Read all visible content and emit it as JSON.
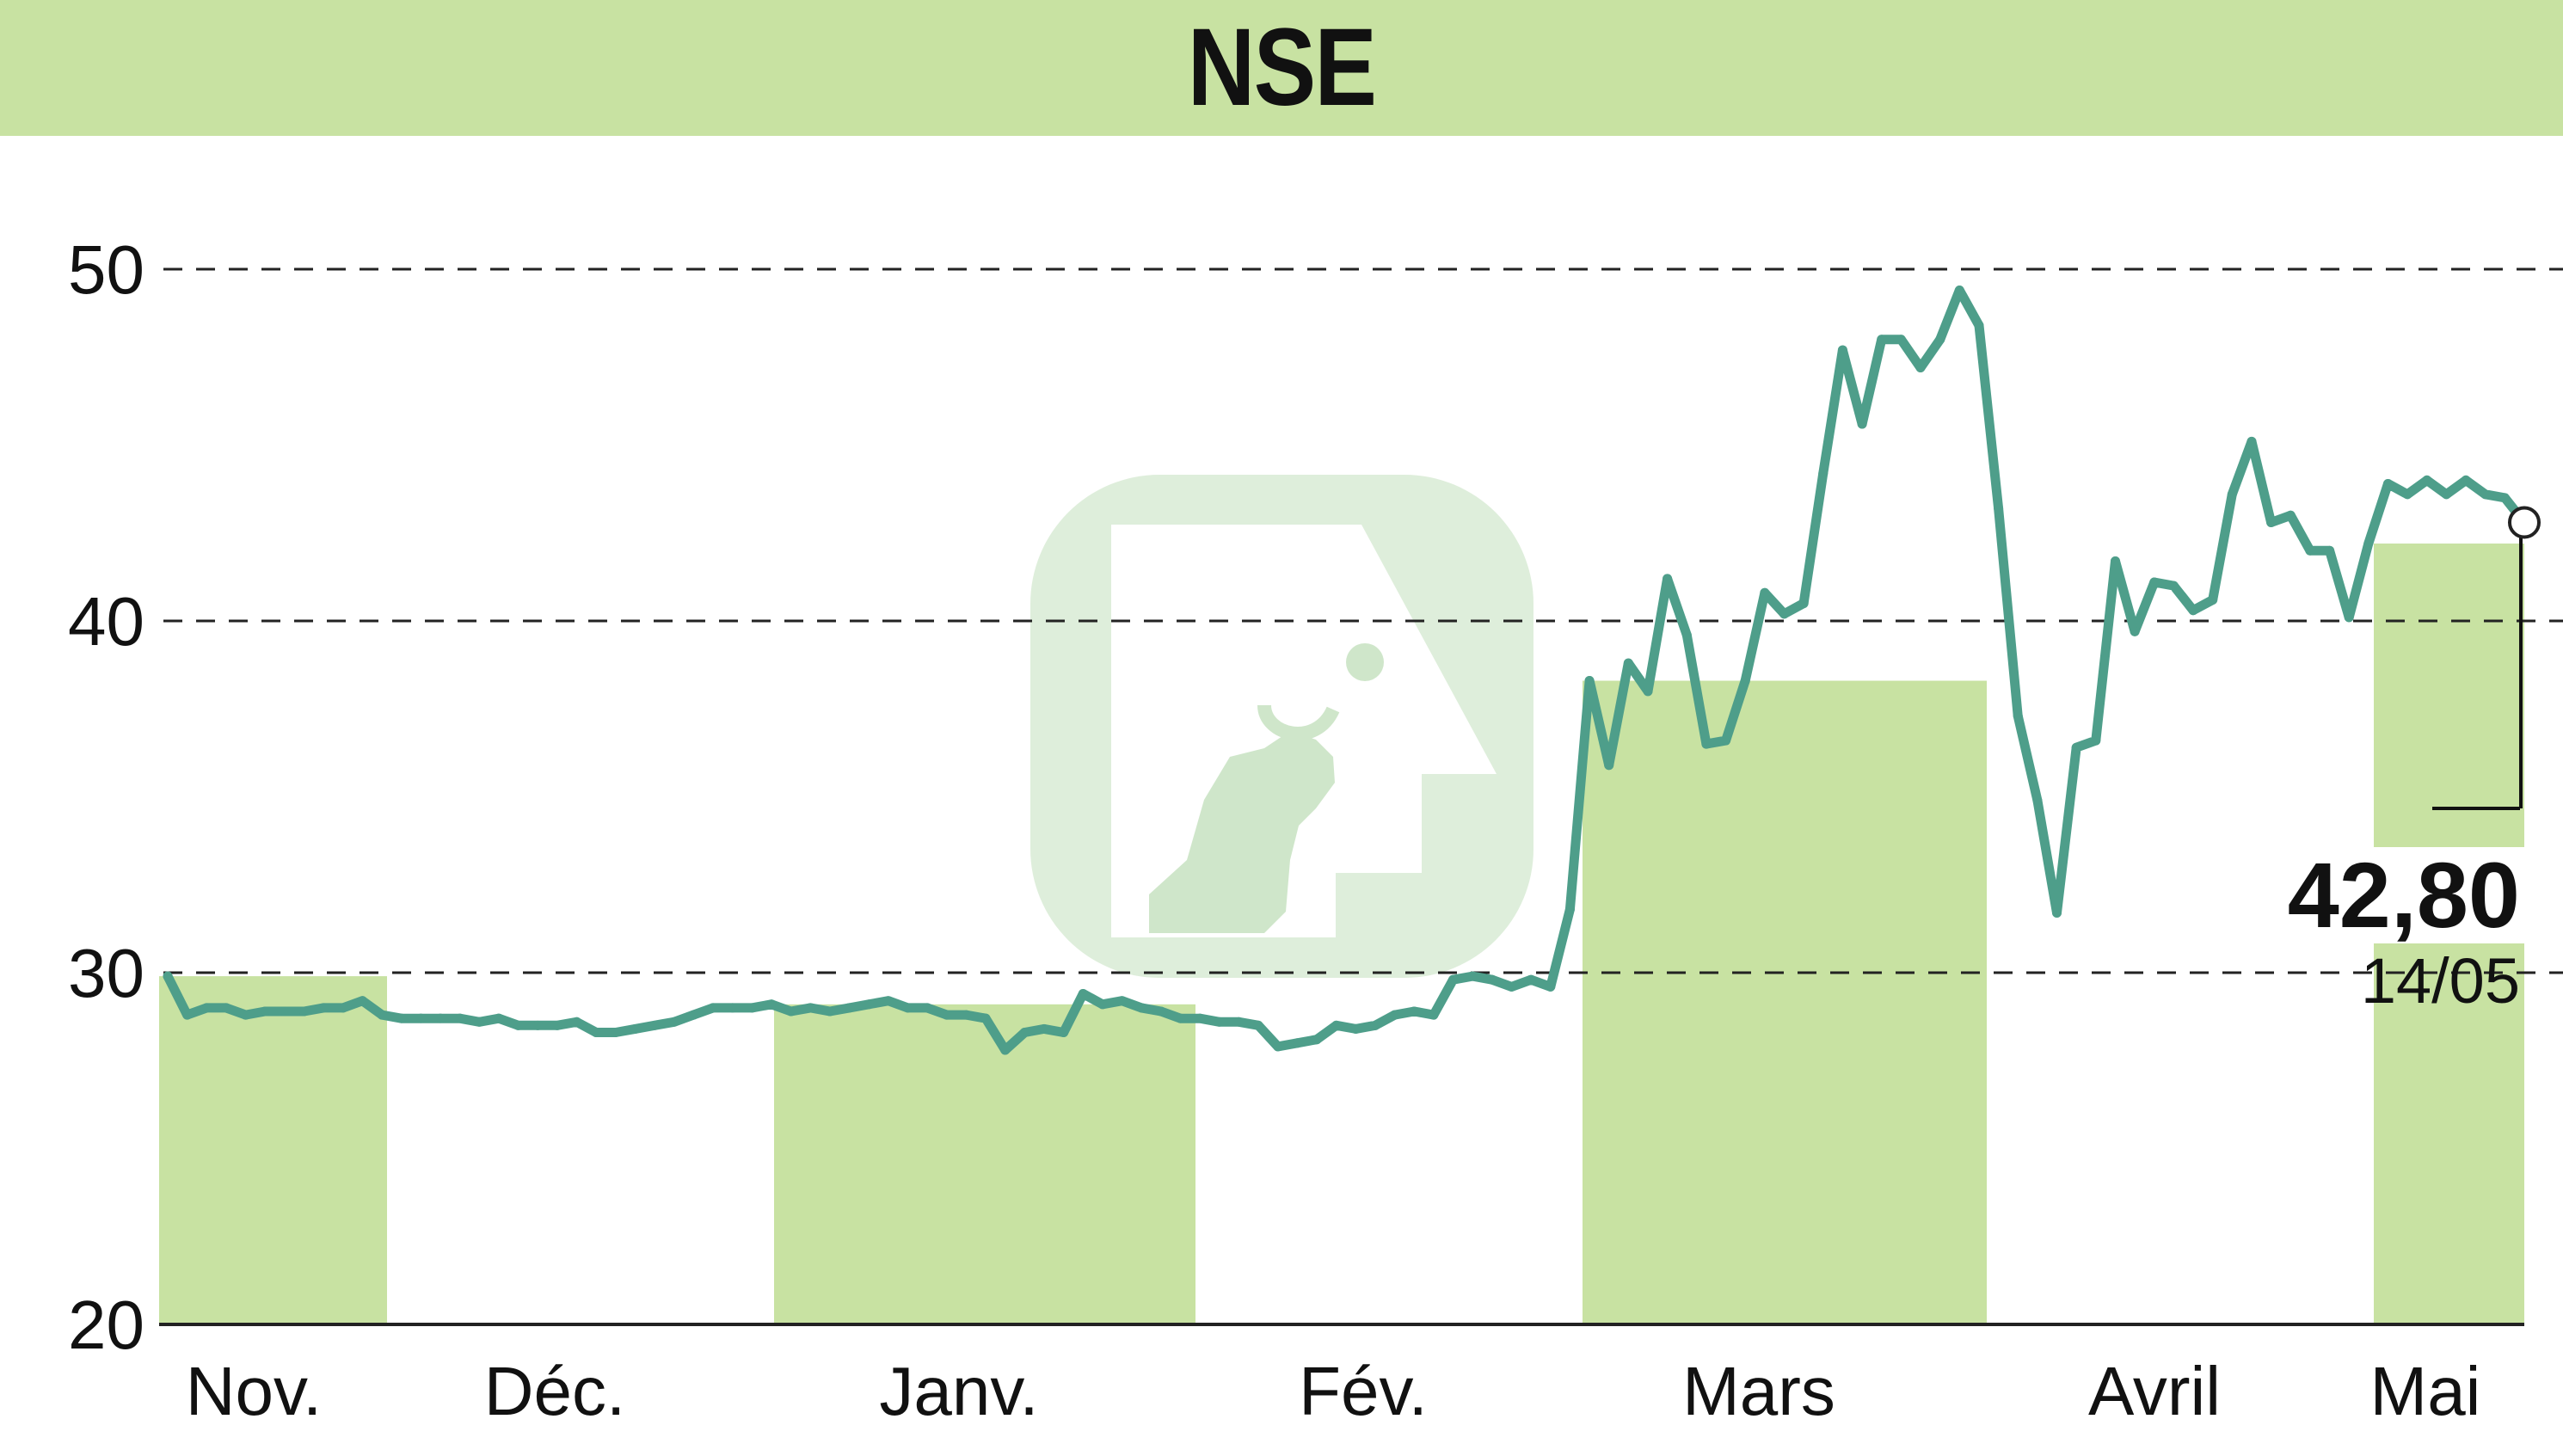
{
  "header": {
    "title": "NSE"
  },
  "last_value": {
    "value": "42,80",
    "date": "14/05"
  },
  "colors": {
    "band": "#c8e2a2",
    "line": "#4e9e8a",
    "grid": "#222222",
    "logo": "#a9d3a0"
  },
  "watermark": {
    "icon": "bull-logo-icon"
  },
  "chart_data": {
    "type": "area",
    "title": "NSE",
    "xlabel": "",
    "ylabel": "",
    "ylim": [
      20,
      50
    ],
    "yticks": [
      "20",
      "30",
      "40",
      "50"
    ],
    "xticks": [
      "Nov.",
      "Déc.",
      "Janv.",
      "Fév.",
      "Mars",
      "Avril",
      "Mai"
    ],
    "grid": "horizontal dashed",
    "series": [
      {
        "values": [
          29.9,
          28.8,
          29.0,
          29.0,
          28.8,
          28.9,
          28.9,
          28.9,
          29.0,
          29.0,
          29.2,
          28.8,
          28.7,
          28.7,
          28.7,
          28.7,
          28.6,
          28.7,
          28.5,
          28.5,
          28.5,
          28.6,
          28.3,
          28.3,
          28.4,
          28.5,
          28.6,
          28.8,
          29.0,
          29.0,
          29.0,
          29.1,
          28.9,
          29.0,
          28.9,
          29.0,
          29.1,
          29.2,
          29.0,
          29.0,
          28.8,
          28.8,
          28.7,
          27.8,
          28.3,
          28.4,
          28.3,
          29.4,
          29.1,
          29.2,
          29.0,
          28.9,
          28.7,
          28.7,
          28.6,
          28.6,
          28.5,
          27.9,
          28.0,
          28.1,
          28.5,
          28.4,
          28.5,
          28.8,
          28.9,
          28.8,
          29.8,
          29.9,
          29.8,
          29.6,
          29.8,
          29.6,
          31.8,
          38.3,
          35.9,
          38.8,
          38.0,
          41.2,
          39.6,
          36.5,
          36.6,
          38.3,
          40.8,
          40.2,
          40.5,
          44.2,
          47.7,
          45.6,
          48.0,
          48.0,
          47.2,
          48.0,
          49.4,
          48.4,
          43.2,
          37.3,
          34.9,
          31.7,
          36.4,
          36.6,
          41.7,
          39.7,
          41.1,
          41.0,
          40.3,
          40.6,
          43.6,
          45.1,
          42.8,
          43.0,
          42.0,
          42.0,
          40.1,
          42.2,
          43.9,
          43.6,
          44.0,
          43.6,
          44.0,
          43.6,
          43.5,
          42.8
        ]
      }
    ],
    "month_bands": [
      {
        "from": "Nov.",
        "label": "Nov."
      },
      {
        "from": "Janv.",
        "label": "Janv."
      },
      {
        "from": "Mars",
        "label": "Mars"
      },
      {
        "from": "Mai",
        "label": "Mai"
      }
    ]
  }
}
